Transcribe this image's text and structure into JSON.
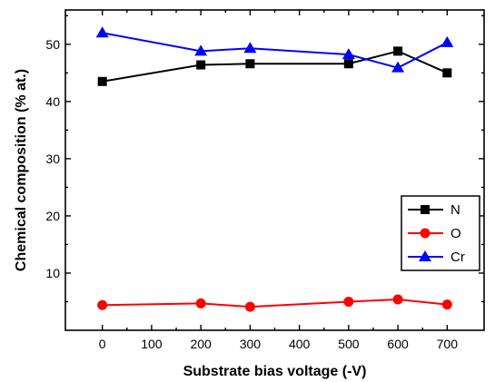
{
  "chart_data": {
    "type": "line",
    "xlabel": "Substrate bias voltage (-V)",
    "ylabel": "Chemical composition (% at.)",
    "xlim": [
      -75,
      775
    ],
    "ylim": [
      0,
      56
    ],
    "xticks": [
      0,
      100,
      200,
      300,
      400,
      500,
      600,
      700
    ],
    "yticks": [
      10,
      20,
      30,
      40,
      50
    ],
    "x": [
      0,
      200,
      300,
      500,
      600,
      700
    ],
    "series": [
      {
        "name": "N",
        "color": "#000000",
        "marker": "square",
        "values": [
          43.5,
          46.4,
          46.6,
          46.6,
          48.8,
          45.0
        ]
      },
      {
        "name": "O",
        "color": "#ff0000",
        "marker": "circle",
        "values": [
          4.4,
          4.7,
          4.1,
          5.0,
          5.4,
          4.5
        ]
      },
      {
        "name": "Cr",
        "color": "#0000ff",
        "marker": "triangle",
        "values": [
          52.0,
          48.8,
          49.3,
          48.2,
          45.9,
          50.3
        ]
      }
    ],
    "legend_position": "right",
    "grid": false
  }
}
